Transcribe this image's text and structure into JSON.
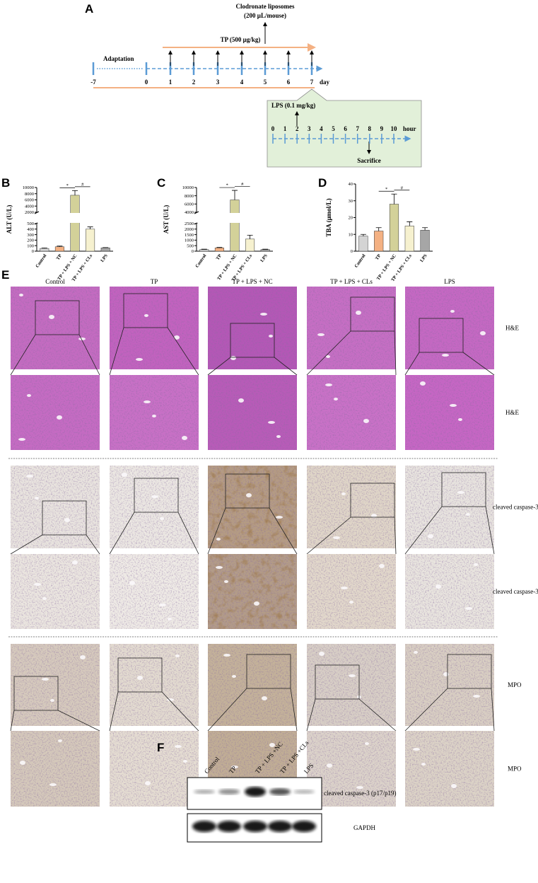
{
  "panel_a": {
    "label": "A",
    "clodronate_title": "Clodronate liposomes",
    "clodronate_dose": "(200 µL/mouse)",
    "tp": "TP (500 µg/kg)",
    "adaptation": "Adaptation",
    "days": [
      -7,
      0,
      1,
      2,
      3,
      4,
      5,
      6,
      7
    ],
    "day_unit": "day",
    "lps": "LPS (0.1 mg/kg)",
    "hours": [
      0,
      1,
      2,
      3,
      4,
      5,
      6,
      7,
      8,
      9,
      10
    ],
    "hour_unit": "hour",
    "sacrifice": "Sacrifice"
  },
  "chart_data": [
    {
      "type": "bar",
      "label": "B",
      "ylabel": "ALT (U/L)",
      "categories": [
        "Control",
        "TP",
        "TP + LPS + NC",
        "TP + LPS + CLs",
        "LPS"
      ],
      "values": [
        50,
        80,
        7500,
        400,
        60
      ],
      "errors": [
        8,
        12,
        1500,
        40,
        6
      ],
      "colors": [
        "#d4d4d4",
        "#f4b183",
        "#d3d199",
        "#f6f1cf",
        "#a6a6a6"
      ],
      "ylim": [
        0,
        10000
      ],
      "axis_break": [
        500,
        2000
      ],
      "yticks": [
        0,
        100,
        200,
        300,
        400,
        500,
        2000,
        4000,
        6000,
        8000,
        10000
      ],
      "annotations": [
        "*",
        "#"
      ]
    },
    {
      "type": "bar",
      "label": "C",
      "ylabel": "AST (U/L)",
      "categories": [
        "Control",
        "TP",
        "TP + LPS + NC",
        "TP + LPS + CLs",
        "LPS"
      ],
      "values": [
        150,
        300,
        7000,
        1100,
        150
      ],
      "errors": [
        30,
        40,
        2300,
        350,
        30
      ],
      "colors": [
        "#d4d4d4",
        "#f4b183",
        "#d3d199",
        "#f6f1cf",
        "#a6a6a6"
      ],
      "ylim": [
        0,
        10000
      ],
      "axis_break": [
        2500,
        4000
      ],
      "yticks": [
        0,
        500,
        1000,
        1500,
        2000,
        2500,
        4000,
        6000,
        8000,
        10000
      ],
      "annotations": [
        "*",
        "#"
      ]
    },
    {
      "type": "bar",
      "label": "D",
      "ylabel": "TBA (μmol/L)",
      "categories": [
        "Control",
        "TP",
        "TP + LPS + NC",
        "TP + LPS + CLs",
        "LPS"
      ],
      "values": [
        9,
        12,
        28,
        15,
        12.5
      ],
      "errors": [
        1,
        2,
        6,
        2.5,
        1.5
      ],
      "colors": [
        "#d4d4d4",
        "#f4b183",
        "#d3d199",
        "#f6f1cf",
        "#a6a6a6"
      ],
      "ylim": [
        0,
        40
      ],
      "yticks": [
        0,
        10,
        20,
        30,
        40
      ],
      "annotations": [
        "*",
        "#"
      ]
    }
  ],
  "panel_e": {
    "label": "E",
    "columns": [
      "Control",
      "TP",
      "TP + LPS + NC",
      "TP + LPS + CLs",
      "LPS"
    ],
    "rows": [
      "H&E",
      "H&E",
      "cleaved caspase-3",
      "cleaved caspase-3",
      "MPO",
      "MPO"
    ]
  },
  "panel_f": {
    "label": "F",
    "lanes": [
      "Control",
      "TP",
      "TP + LPS +NC",
      "TP + LPS +CLs",
      "LPS"
    ],
    "bands": [
      "cleaved caspase-3 (p17/p19)",
      "GAPDH"
    ]
  }
}
